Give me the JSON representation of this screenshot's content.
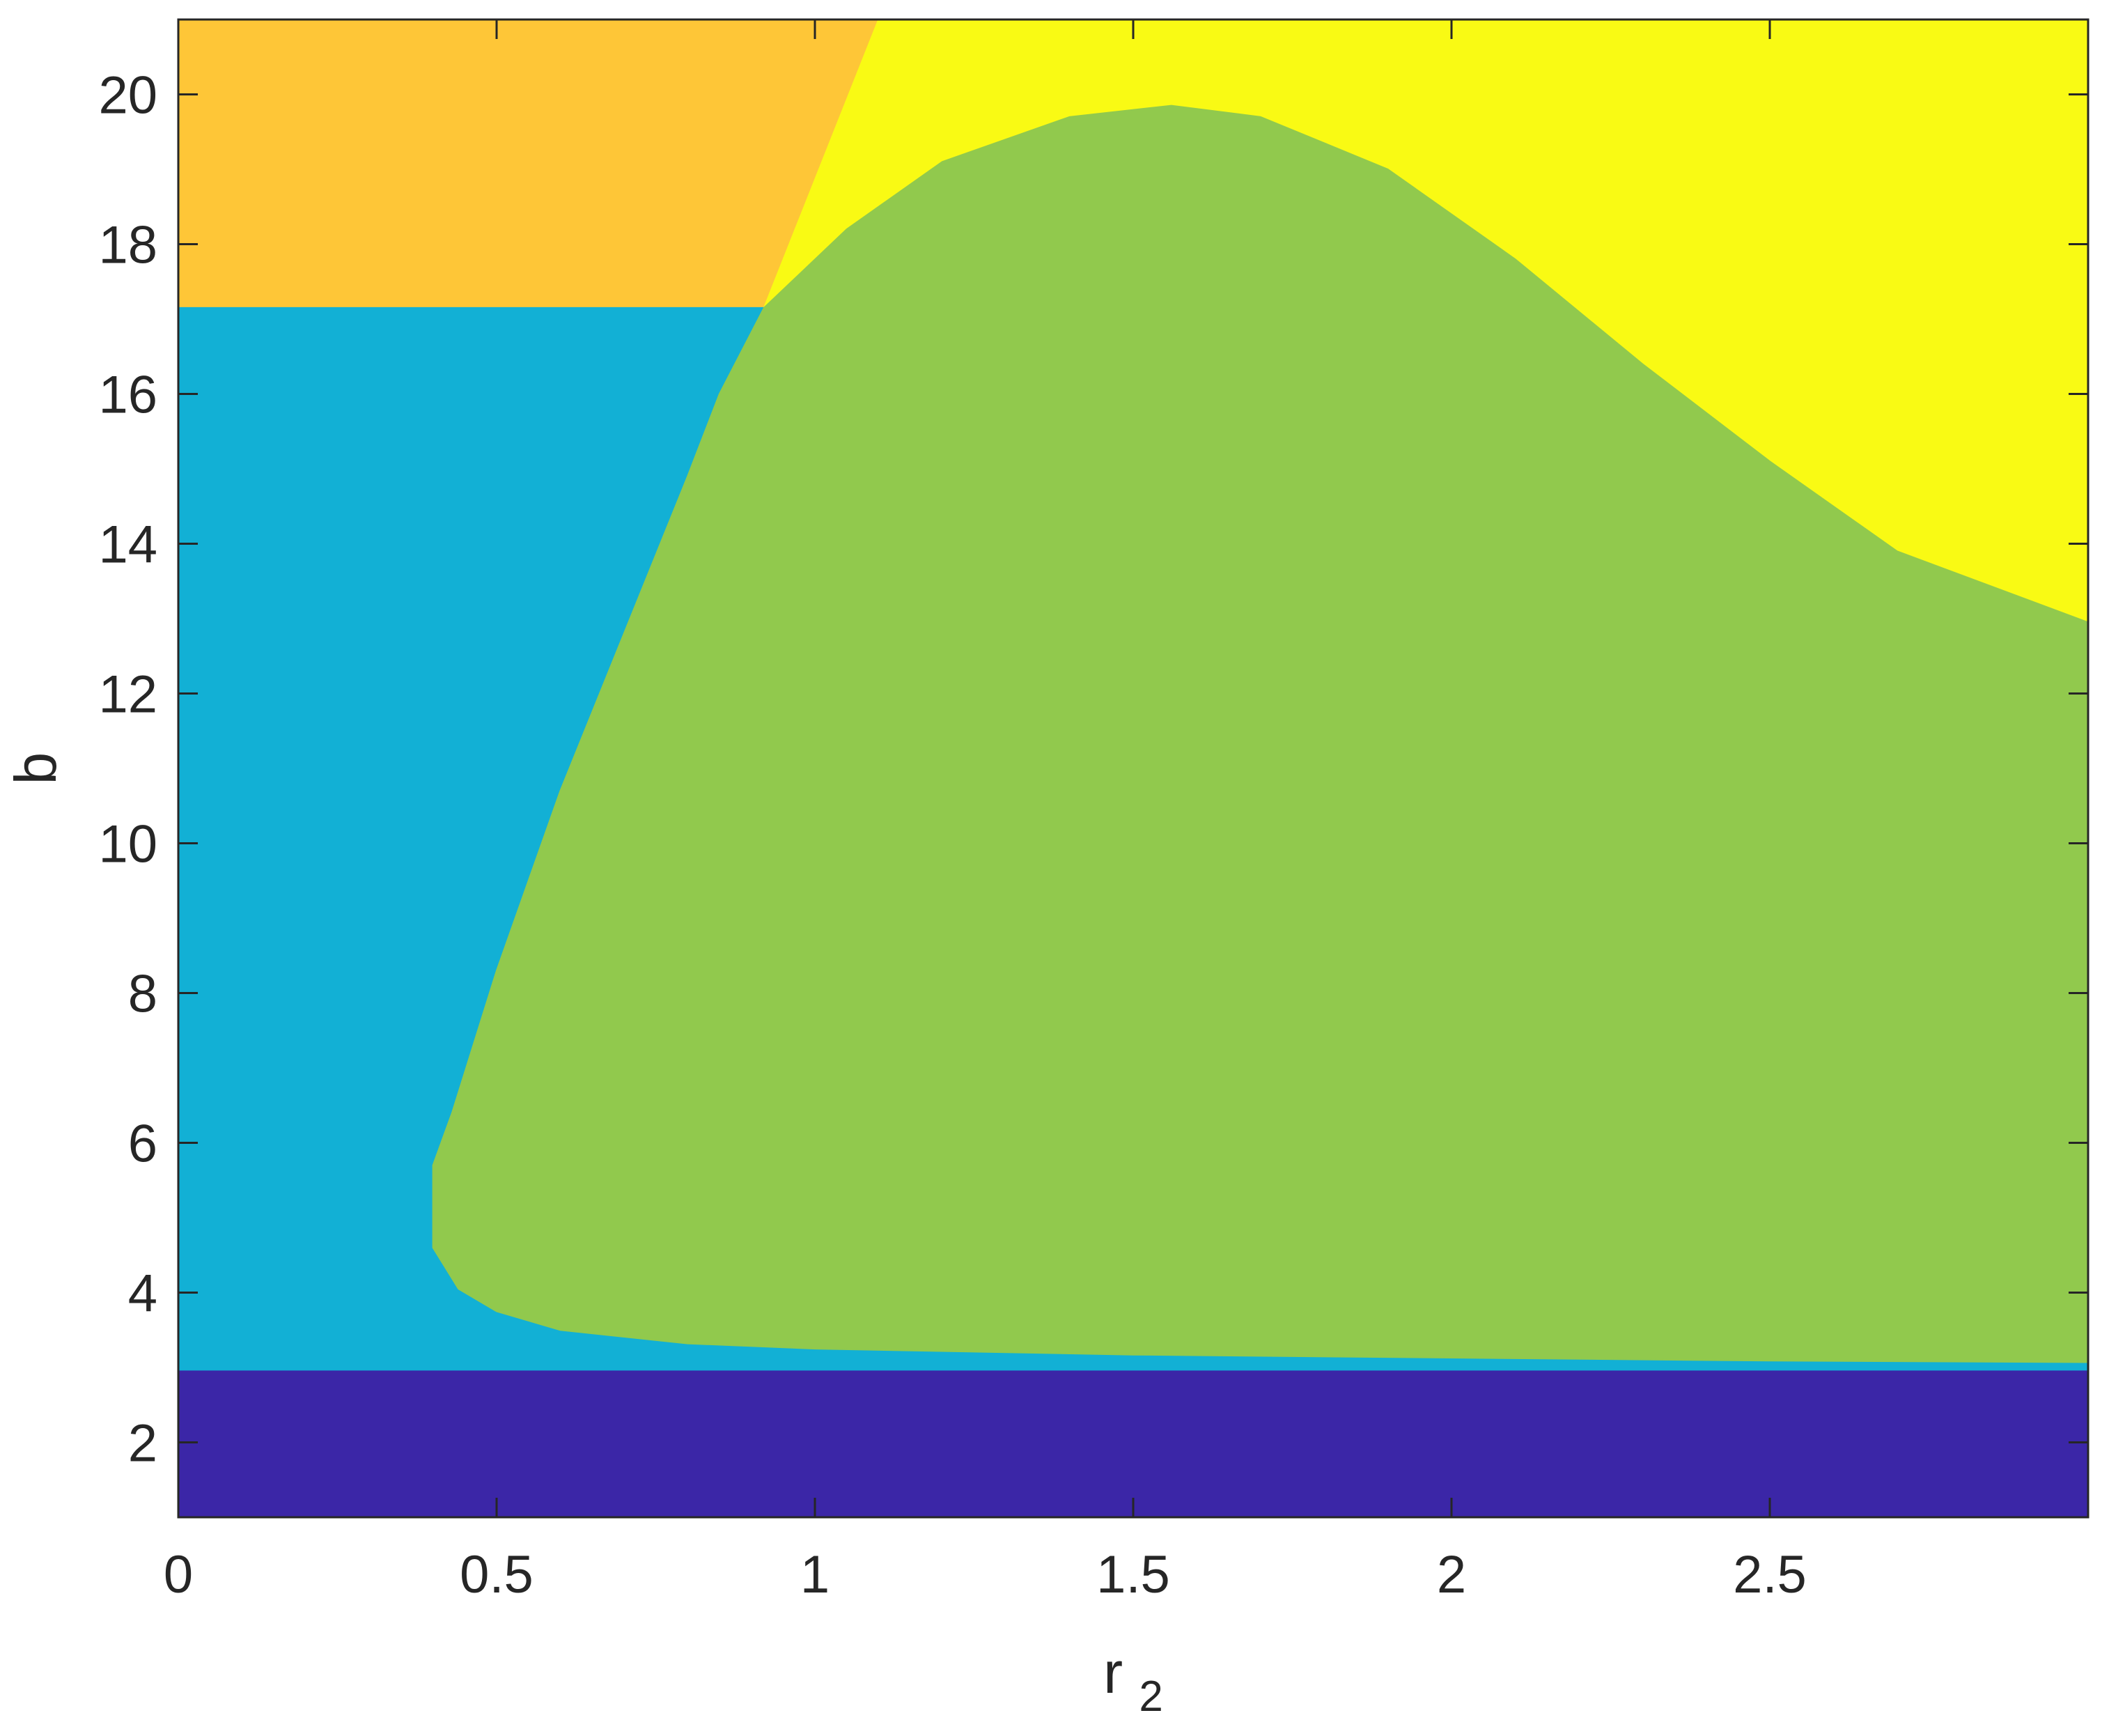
{
  "chart_data": {
    "type": "heatmap",
    "title": "",
    "xlabel": "r",
    "xlabel_subscript": "2",
    "ylabel": "b",
    "xlim": [
      0,
      3
    ],
    "ylim": [
      1,
      21
    ],
    "xticks": [
      0,
      0.5,
      1,
      1.5,
      2,
      2.5
    ],
    "xtick_labels": [
      "0",
      "0.5",
      "1",
      "1.5",
      "2",
      "2.5"
    ],
    "yticks": [
      2,
      4,
      6,
      8,
      10,
      12,
      14,
      16,
      18,
      20
    ],
    "ytick_labels": [
      "2",
      "4",
      "6",
      "8",
      "10",
      "12",
      "14",
      "16",
      "18",
      "20"
    ],
    "grid": false,
    "legend": "none",
    "regions": [
      {
        "id": "top-left",
        "color": "#FEC637",
        "boundary": [
          [
            0,
            21
          ],
          [
            1.1,
            21
          ],
          [
            0.92,
            17.15
          ],
          [
            0,
            17.15
          ]
        ]
      },
      {
        "id": "top-right",
        "color": "#F9FA14",
        "boundary": [
          [
            1.1,
            21
          ],
          [
            3,
            21
          ],
          [
            3,
            12.95
          ],
          [
            2.7,
            13.9
          ],
          [
            2.5,
            15.1
          ],
          [
            2.3,
            16.4
          ],
          [
            2.1,
            17.8
          ],
          [
            1.9,
            19.0
          ],
          [
            1.7,
            19.7
          ],
          [
            1.56,
            19.85
          ],
          [
            1.4,
            19.7
          ],
          [
            1.2,
            19.1
          ],
          [
            1.05,
            18.2
          ],
          [
            0.92,
            17.15
          ]
        ]
      },
      {
        "id": "left-band",
        "color": "#12B0D5",
        "boundary": [
          [
            0,
            17.15
          ],
          [
            0.92,
            17.15
          ],
          [
            0.85,
            16.0
          ],
          [
            0.8,
            14.9
          ],
          [
            0.7,
            12.8
          ],
          [
            0.6,
            10.7
          ],
          [
            0.5,
            8.3
          ],
          [
            0.43,
            6.4
          ],
          [
            0.4,
            5.7
          ],
          [
            0.4,
            4.6
          ],
          [
            0.44,
            4.05
          ],
          [
            0.5,
            3.75
          ],
          [
            0.6,
            3.5
          ],
          [
            0.8,
            3.32
          ],
          [
            1.0,
            3.25
          ],
          [
            1.5,
            3.17
          ],
          [
            2.0,
            3.13
          ],
          [
            2.5,
            3.09
          ],
          [
            3,
            3.07
          ],
          [
            3,
            2.95
          ],
          [
            0,
            2.95
          ]
        ]
      },
      {
        "id": "central-region",
        "color": "#91C94D",
        "boundary": [
          [
            0.92,
            17.15
          ],
          [
            1.05,
            18.2
          ],
          [
            1.2,
            19.1
          ],
          [
            1.4,
            19.7
          ],
          [
            1.56,
            19.85
          ],
          [
            1.7,
            19.7
          ],
          [
            1.9,
            19.0
          ],
          [
            2.1,
            17.8
          ],
          [
            2.3,
            16.4
          ],
          [
            2.5,
            15.1
          ],
          [
            2.7,
            13.9
          ],
          [
            3,
            12.95
          ],
          [
            3,
            3.07
          ],
          [
            2.5,
            3.09
          ],
          [
            2.0,
            3.13
          ],
          [
            1.5,
            3.17
          ],
          [
            1.0,
            3.25
          ],
          [
            0.8,
            3.32
          ],
          [
            0.6,
            3.5
          ],
          [
            0.5,
            3.75
          ],
          [
            0.44,
            4.05
          ],
          [
            0.4,
            4.6
          ],
          [
            0.4,
            5.7
          ],
          [
            0.43,
            6.4
          ],
          [
            0.5,
            8.3
          ],
          [
            0.6,
            10.7
          ],
          [
            0.7,
            12.8
          ],
          [
            0.8,
            14.9
          ],
          [
            0.85,
            16.0
          ]
        ]
      },
      {
        "id": "bottom-band",
        "color": "#3B26A7",
        "boundary": [
          [
            0,
            2.95
          ],
          [
            3,
            2.95
          ],
          [
            3,
            1
          ],
          [
            0,
            1
          ]
        ]
      }
    ]
  }
}
